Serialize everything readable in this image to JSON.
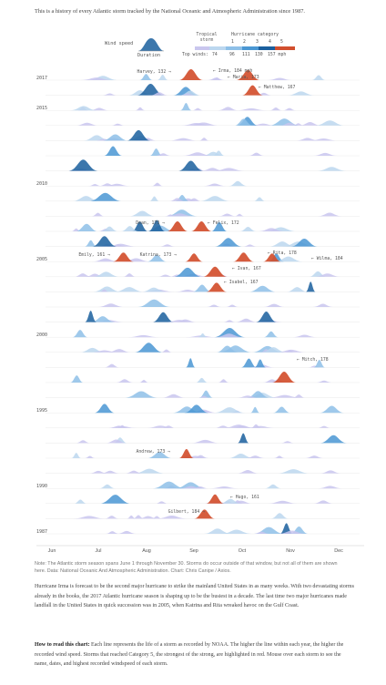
{
  "intro": "This is a history of every Atlantic storm tracked by the National Oceanic and Atmospheric Administration since 1987.",
  "legend": {
    "wind_speed_label": "Wind speed",
    "duration_label": "Duration",
    "tropical_storm_label": "Tropical storm",
    "hurricane_category_label": "Hurricane category",
    "categories": [
      "1",
      "2",
      "3",
      "4",
      "5"
    ],
    "top_winds_label": "Top winds:",
    "top_winds_values": [
      "74",
      "96",
      "111",
      "130",
      "157 mph"
    ],
    "colors": [
      "#c9c6ee",
      "#bcd7ef",
      "#8ec0e8",
      "#4a97d3",
      "#1a5f9e",
      "#d24f2e"
    ]
  },
  "chart_data": {
    "type": "area",
    "description": "Ridgeline of Atlantic storms per season",
    "x_ticks": [
      "Jun",
      "Jul",
      "Aug",
      "Sep",
      "Oct",
      "Nov",
      "Dec"
    ],
    "year_labels": [
      "2017",
      "2015",
      "2010",
      "2005",
      "2000",
      "1995",
      "1990",
      "1987"
    ],
    "annotations": [
      "Irma, 184 mph",
      "Harvey, 132",
      "Maria, 173",
      "Matthew, 167",
      "Dean, 173",
      "Felix, 172",
      "Emily, 161",
      "Katrina, 173",
      "Rita, 178",
      "Wilma, 184",
      "Ivan, 167",
      "Isabel, 167",
      "Mitch, 178",
      "Andrew, 173",
      "Hugo, 161",
      "Gilbert, 184"
    ]
  },
  "note": "Note: The Atlantic storm season spans June 1 through November 30. Storms do occur outside of that window, but not all of them are shown here. Data: National Oceanic And Atmospheric Administration. Chart: Chris Canipe / Axios.",
  "para1": "Hurricane Irma is forecast to be the second major hurricane to strike the mainland United States in as many weeks. With two devastating storms already in the books, the 2017 Atlantic hurricane season is shaping up to be the busiest in a decade. The last time two major hurricanes made landfall in the United States in quick succession was in 2005, when Katrina and Rita wreaked havoc on the Gulf Coast.",
  "para2_lead": "How to read this chart:",
  "para2_body": " Each line represents the life of a storm as recorded by NOAA. The higher the line within each year, the higher the recorded wind speed. Storms that reached Category 5, the strongest of the strong, are highlighted in red. Mouse over each storm to see the name, dates, and highest recorded windspeed of each storm."
}
